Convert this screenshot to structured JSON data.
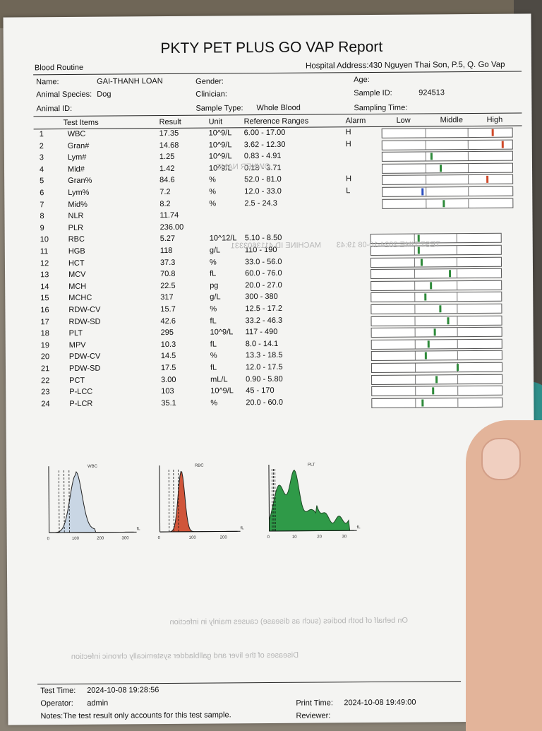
{
  "report": {
    "title": "PKTY PET PLUS GO VAP Report",
    "section": "Blood Routine",
    "hospital_address": "Hospital Address:430 Nguyen Thai Son, P.5, Q. Go Vap",
    "name_label": "Name:",
    "name_value": "GAI-THANH LOAN",
    "gender_label": "Gender:",
    "age_label": "Age:",
    "species_label": "Animal Species:",
    "species_value": "Dog",
    "clinician_label": "Clinician:",
    "sample_id_label": "Sample ID:",
    "sample_id_value": "924513",
    "animal_id_label": "Animal ID:",
    "sample_type_label": "Sample Type:",
    "sample_type_value": "Whole Blood",
    "sampling_time_label": "Sampling Time:"
  },
  "table": {
    "headers": {
      "items": "Test Items",
      "result": "Result",
      "unit": "Unit",
      "ranges": "Reference Ranges",
      "alarm": "Alarm",
      "low": "Low",
      "middle": "Middle",
      "high": "High"
    },
    "rows": [
      {
        "no": "1",
        "item": "WBC",
        "result": "17.35",
        "unit": "10^9/L",
        "range": "6.00 - 17.00",
        "alarm": "H",
        "marker": 0.84,
        "color": "#d04a2a"
      },
      {
        "no": "2",
        "item": "Gran#",
        "result": "14.68",
        "unit": "10^9/L",
        "range": "3.62 - 12.30",
        "alarm": "H",
        "marker": 0.92,
        "color": "#d04a2a"
      },
      {
        "no": "3",
        "item": "Lym#",
        "result": "1.25",
        "unit": "10^9/L",
        "range": "0.83 - 4.91",
        "alarm": "",
        "marker": 0.37,
        "color": "#2e8a3a"
      },
      {
        "no": "4",
        "item": "Mid#",
        "result": "1.42",
        "unit": "10^9/L",
        "range": "0.18 - 3.71",
        "alarm": "",
        "marker": 0.44,
        "color": "#2e8a3a"
      },
      {
        "no": "5",
        "item": "Gran%",
        "result": "84.6",
        "unit": "%",
        "range": "52.0 - 81.0",
        "alarm": "H",
        "marker": 0.8,
        "color": "#d04a2a"
      },
      {
        "no": "6",
        "item": "Lym%",
        "result": "7.2",
        "unit": "%",
        "range": "12.0 - 33.0",
        "alarm": "L",
        "marker": 0.3,
        "color": "#2b4fc0"
      },
      {
        "no": "7",
        "item": "Mid%",
        "result": "8.2",
        "unit": "%",
        "range": "2.5 - 24.3",
        "alarm": "",
        "marker": 0.46,
        "color": "#2e8a3a"
      },
      {
        "no": "8",
        "item": "NLR",
        "result": "11.74",
        "unit": "",
        "range": "",
        "alarm": "",
        "marker": null,
        "color": ""
      },
      {
        "no": "9",
        "item": "PLR",
        "result": "236.00",
        "unit": "",
        "range": "",
        "alarm": "",
        "marker": null,
        "color": ""
      },
      {
        "no": "10",
        "item": "RBC",
        "result": "5.27",
        "unit": "10^12/L",
        "range": "5.10 - 8.50",
        "alarm": "",
        "marker": 0.36,
        "color": "#2e8a3a"
      },
      {
        "no": "11",
        "item": "HGB",
        "result": "118",
        "unit": "g/L",
        "range": "110 - 190",
        "alarm": "",
        "marker": 0.36,
        "color": "#2e8a3a"
      },
      {
        "no": "12",
        "item": "HCT",
        "result": "37.3",
        "unit": "%",
        "range": "33.0 - 56.0",
        "alarm": "",
        "marker": 0.38,
        "color": "#2e8a3a"
      },
      {
        "no": "13",
        "item": "MCV",
        "result": "70.8",
        "unit": "fL",
        "range": "60.0 - 76.0",
        "alarm": "",
        "marker": 0.6,
        "color": "#2e8a3a"
      },
      {
        "no": "14",
        "item": "MCH",
        "result": "22.5",
        "unit": "pg",
        "range": "20.0 - 27.0",
        "alarm": "",
        "marker": 0.45,
        "color": "#2e8a3a"
      },
      {
        "no": "15",
        "item": "MCHC",
        "result": "317",
        "unit": "g/L",
        "range": "300 - 380",
        "alarm": "",
        "marker": 0.41,
        "color": "#2e8a3a"
      },
      {
        "no": "16",
        "item": "RDW-CV",
        "result": "15.7",
        "unit": "%",
        "range": "12.5 - 17.2",
        "alarm": "",
        "marker": 0.52,
        "color": "#2e8a3a"
      },
      {
        "no": "17",
        "item": "RDW-SD",
        "result": "42.6",
        "unit": "fL",
        "range": "33.2 - 46.3",
        "alarm": "",
        "marker": 0.58,
        "color": "#2e8a3a"
      },
      {
        "no": "18",
        "item": "PLT",
        "result": "295",
        "unit": "10^9/L",
        "range": "117 - 490",
        "alarm": "",
        "marker": 0.48,
        "color": "#2e8a3a"
      },
      {
        "no": "19",
        "item": "MPV",
        "result": "10.3",
        "unit": "fL",
        "range": "8.0 - 14.1",
        "alarm": "",
        "marker": 0.43,
        "color": "#2e8a3a"
      },
      {
        "no": "20",
        "item": "PDW-CV",
        "result": "14.5",
        "unit": "%",
        "range": "13.3 - 18.5",
        "alarm": "",
        "marker": 0.41,
        "color": "#2e8a3a"
      },
      {
        "no": "21",
        "item": "PDW-SD",
        "result": "17.5",
        "unit": "fL",
        "range": "12.0 - 17.5",
        "alarm": "",
        "marker": 0.65,
        "color": "#2e8a3a"
      },
      {
        "no": "22",
        "item": "PCT",
        "result": "3.00",
        "unit": "mL/L",
        "range": "0.90 - 5.80",
        "alarm": "",
        "marker": 0.49,
        "color": "#2e8a3a"
      },
      {
        "no": "23",
        "item": "P-LCC",
        "result": "103",
        "unit": "10^9/L",
        "range": "45 - 170",
        "alarm": "",
        "marker": 0.46,
        "color": "#2e8a3a"
      },
      {
        "no": "24",
        "item": "P-LCR",
        "result": "35.1",
        "unit": "%",
        "range": "20.0 - 60.0",
        "alarm": "",
        "marker": 0.38,
        "color": "#2e8a3a"
      }
    ]
  },
  "histograms": [
    {
      "label": "WBC",
      "axis": "fL",
      "ticks": [
        "0",
        "100",
        "200",
        "300"
      ],
      "fill": "#c9d6e4",
      "stroke": "#222"
    },
    {
      "label": "RBC",
      "axis": "fL",
      "ticks": [
        "0",
        "100",
        "200"
      ],
      "fill": "#d0553a",
      "stroke": "#222"
    },
    {
      "label": "PLT",
      "axis": "fL",
      "ticks": [
        "0",
        "10",
        "20",
        "30"
      ],
      "fill": "#2f9a48",
      "stroke": "#1d4a25"
    }
  ],
  "footer": {
    "test_time_label": "Test Time:",
    "test_time_value": "2024-10-08 19:28:56",
    "operator_label": "Operator:",
    "operator_value": "admin",
    "print_time_label": "Print Time:",
    "print_time_value": "2024-10-08 19:49:00",
    "reviewer_label": "Reviewer:",
    "notes": "Notes:The test result only accounts for this test sample."
  }
}
